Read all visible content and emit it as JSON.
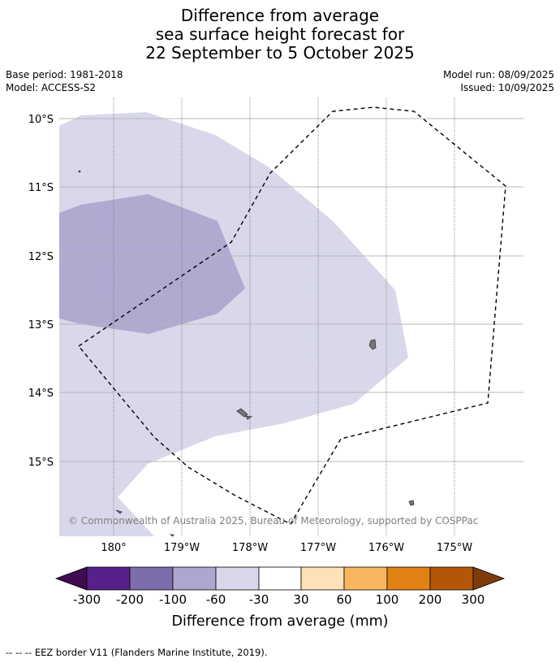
{
  "title_lines": [
    "Difference from average",
    "sea surface height forecast for",
    "22 September to 5 October 2025"
  ],
  "base_period": "Base period: 1981-2018",
  "model": "Model: ACCESS-S2",
  "model_run": "Model run: 08/09/2025",
  "issued": "Issued: 10/09/2025",
  "map": {
    "lat_labels": [
      "10°S",
      "11°S",
      "12°S",
      "13°S",
      "14°S",
      "15°S"
    ],
    "lon_labels": [
      "180°",
      "179°W",
      "178°W",
      "177°W",
      "176°W",
      "175°W"
    ],
    "attribution": "© Commonwealth of Australia 2025, Bureau of Meteorology, supported by COSPPac"
  },
  "legend": {
    "title": "Difference from average (mm)",
    "tick_labels": [
      "-300",
      "-200",
      "-100",
      "-60",
      "-30",
      "30",
      "60",
      "100",
      "200",
      "300"
    ],
    "colors": [
      "#3f0a4f",
      "#58208a",
      "#7e6dab",
      "#aea6ce",
      "#d8d8ea",
      "#ffffff",
      "#fde1b7",
      "#f9b560",
      "#e28214",
      "#b35706",
      "#7f3c0a"
    ]
  },
  "footnote": "--  --  -- EEZ border V11 (Flanders Marine Institute, 2019)."
}
